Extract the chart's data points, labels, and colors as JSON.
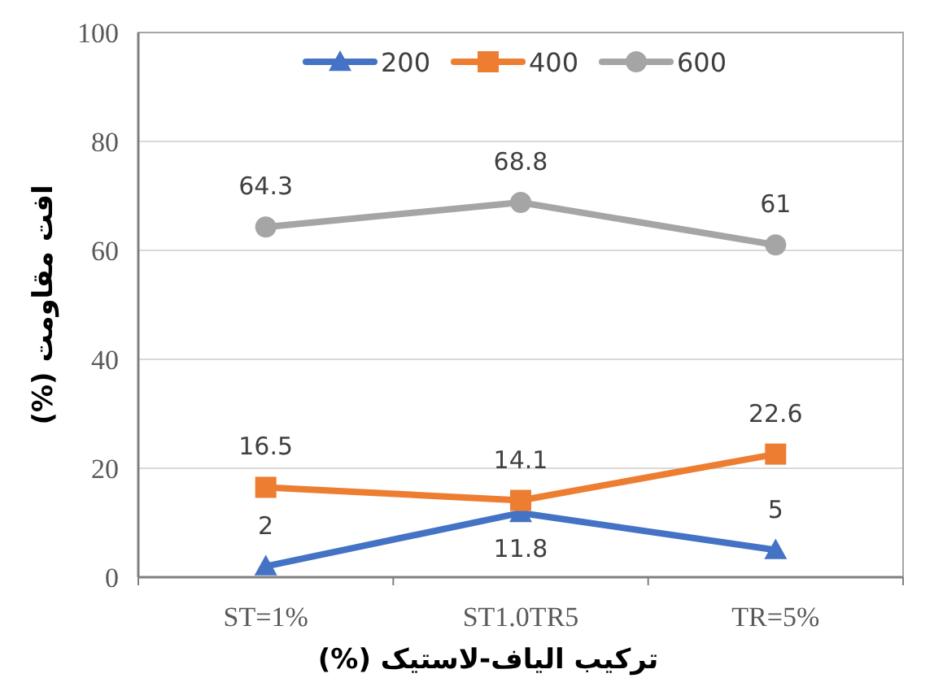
{
  "chart_data": {
    "type": "line",
    "xlabel": "ترکیب الیاف-لاستیک (%)",
    "ylabel": "افت مقاومت (%)",
    "categories": [
      "ST=1%",
      "ST1.0TR5",
      "TR=5%"
    ],
    "series": [
      {
        "name": "200",
        "color": "#4472c4",
        "marker": "triangle",
        "values": [
          2,
          11.8,
          5
        ]
      },
      {
        "name": "400",
        "color": "#ed7d31",
        "marker": "square",
        "values": [
          16.5,
          14.1,
          22.6
        ]
      },
      {
        "name": "600",
        "color": "#a5a5a5",
        "marker": "circle",
        "values": [
          64.3,
          68.8,
          61
        ]
      }
    ],
    "ylim": [
      0,
      100
    ],
    "yticks": [
      0,
      20,
      40,
      60,
      80,
      100
    ],
    "grid": "y",
    "legend": "top",
    "data_labels": true,
    "line_style": "solid"
  }
}
